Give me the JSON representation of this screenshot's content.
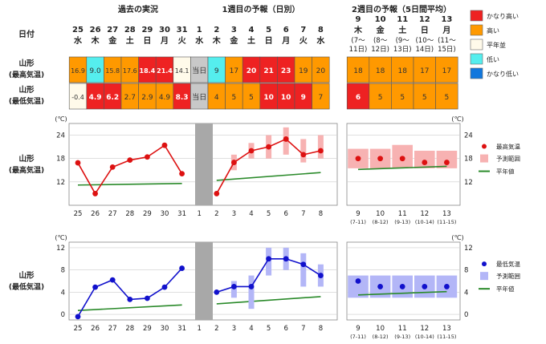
{
  "headers": {
    "past": "過去の実況",
    "week1": "1週目の予報（日別）",
    "week2": "2週目の予報（5日間平均）",
    "date_label": "日付"
  },
  "days": [
    {
      "d": "25",
      "w": "水"
    },
    {
      "d": "26",
      "w": "木"
    },
    {
      "d": "27",
      "w": "金"
    },
    {
      "d": "28",
      "w": "土"
    },
    {
      "d": "29",
      "w": "日"
    },
    {
      "d": "30",
      "w": "月"
    },
    {
      "d": "31",
      "w": "火"
    },
    {
      "d": "1",
      "w": "水"
    },
    {
      "d": "2",
      "w": "木"
    },
    {
      "d": "3",
      "w": "金"
    },
    {
      "d": "4",
      "w": "土"
    },
    {
      "d": "5",
      "w": "日"
    },
    {
      "d": "6",
      "w": "月"
    },
    {
      "d": "7",
      "w": "火"
    },
    {
      "d": "8",
      "w": "水"
    }
  ],
  "week2_days": [
    {
      "d": "9",
      "w": "木",
      "r": [
        "(7～",
        "11日)"
      ]
    },
    {
      "d": "10",
      "w": "金",
      "r": [
        "(8～",
        "12日)"
      ]
    },
    {
      "d": "11",
      "w": "土",
      "r": [
        "(9～",
        "13日)"
      ]
    },
    {
      "d": "12",
      "w": "日",
      "r": [
        "(10～",
        "14日)"
      ]
    },
    {
      "d": "13",
      "w": "月",
      "r": [
        "(11～",
        "15日)"
      ]
    }
  ],
  "rows": [
    {
      "name": [
        "山形",
        "(最高気温)"
      ],
      "cells": [
        {
          "v": "16.9",
          "c": "high"
        },
        {
          "v": "9.0",
          "c": "low"
        },
        {
          "v": "15.8",
          "c": "high"
        },
        {
          "v": "17.6",
          "c": "high"
        },
        {
          "v": "18.4",
          "c": "vhigh"
        },
        {
          "v": "21.4",
          "c": "vhigh"
        },
        {
          "v": "14.1",
          "c": "normal"
        },
        {
          "v": "当日",
          "c": "today"
        },
        {
          "v": "9",
          "c": "low"
        },
        {
          "v": "17",
          "c": "high"
        },
        {
          "v": "20",
          "c": "vhigh"
        },
        {
          "v": "21",
          "c": "vhigh"
        },
        {
          "v": "23",
          "c": "vhigh"
        },
        {
          "v": "19",
          "c": "high"
        },
        {
          "v": "20",
          "c": "high"
        }
      ],
      "w2": [
        {
          "v": "18",
          "c": "high"
        },
        {
          "v": "18",
          "c": "high"
        },
        {
          "v": "18",
          "c": "high"
        },
        {
          "v": "17",
          "c": "high"
        },
        {
          "v": "17",
          "c": "high"
        }
      ]
    },
    {
      "name": [
        "山形",
        "(最低気温)"
      ],
      "cells": [
        {
          "v": "-0.4",
          "c": "normal"
        },
        {
          "v": "4.9",
          "c": "vhigh"
        },
        {
          "v": "6.2",
          "c": "vhigh"
        },
        {
          "v": "2.7",
          "c": "high"
        },
        {
          "v": "2.9",
          "c": "high"
        },
        {
          "v": "4.9",
          "c": "high"
        },
        {
          "v": "8.3",
          "c": "vhigh"
        },
        {
          "v": "当日",
          "c": "today"
        },
        {
          "v": "4",
          "c": "high"
        },
        {
          "v": "5",
          "c": "high"
        },
        {
          "v": "5",
          "c": "high"
        },
        {
          "v": "10",
          "c": "vhigh"
        },
        {
          "v": "10",
          "c": "vhigh"
        },
        {
          "v": "9",
          "c": "vhigh"
        },
        {
          "v": "7",
          "c": "high"
        }
      ],
      "w2": [
        {
          "v": "6",
          "c": "vhigh"
        },
        {
          "v": "5",
          "c": "high"
        },
        {
          "v": "5",
          "c": "high"
        },
        {
          "v": "5",
          "c": "high"
        },
        {
          "v": "5",
          "c": "high"
        }
      ]
    }
  ],
  "legend": [
    {
      "label": "かなり高い",
      "color": "#ee2222"
    },
    {
      "label": "高い",
      "color": "#ff9900"
    },
    {
      "label": "平年並",
      "color": "#fffaea"
    },
    {
      "label": "低い",
      "color": "#55eeee"
    },
    {
      "label": "かなり低い",
      "color": "#1177dd"
    }
  ],
  "colors": {
    "vhigh": "#ee2222",
    "high": "#ff9900",
    "normal": "#fffaea",
    "low": "#55eeee",
    "vlow": "#1177dd",
    "today": "#c8c8c8",
    "max_line": "#dd1111",
    "max_range": "#f7b2b2",
    "min_line": "#1111cc",
    "min_range": "#b3b6f7",
    "normal_line": "#2a8a2a"
  },
  "chart_data": [
    {
      "type": "line",
      "title": "山形 (最高気温)",
      "row_label": [
        "山形",
        "(最高気温)"
      ],
      "unit": "(℃)",
      "ylim": [
        6,
        27
      ],
      "yticks": [
        12,
        18,
        24
      ],
      "categories": [
        "25",
        "26",
        "27",
        "28",
        "29",
        "30",
        "31",
        "1",
        "2",
        "3",
        "4",
        "5",
        "6",
        "7",
        "8"
      ],
      "past_values": [
        16.9,
        9.0,
        15.8,
        17.6,
        18.4,
        21.4,
        14.1
      ],
      "forecast_values": [
        9,
        17,
        20,
        21,
        23,
        19,
        20
      ],
      "forecast_range": [
        null,
        [
          15,
          19
        ],
        [
          18,
          22
        ],
        [
          18,
          24
        ],
        [
          19,
          26
        ],
        [
          17,
          23
        ],
        [
          18,
          24
        ]
      ],
      "normal_past": [
        11.2,
        11.6
      ],
      "normal_forecast": [
        12.4,
        14.4
      ],
      "week2": {
        "categories": [
          "9",
          "10",
          "11",
          "12",
          "13"
        ],
        "sub_labels": [
          "(7-11)",
          "(8-12)",
          "(9-13)",
          "(10-14)",
          "(11-15)"
        ],
        "values": [
          18,
          18,
          18,
          17,
          17
        ],
        "range": [
          [
            15.5,
            20.5
          ],
          [
            15.5,
            20.5
          ],
          [
            15.5,
            21.5
          ],
          [
            15.5,
            20
          ],
          [
            15.5,
            20
          ]
        ],
        "normal": [
          15.2,
          16.0
        ]
      },
      "legend": [
        "最高気温",
        "予測範囲",
        "平年値"
      ]
    },
    {
      "type": "line",
      "title": "山形 (最低気温)",
      "row_label": [
        "山形",
        "(最低気温)"
      ],
      "unit": "(℃)",
      "ylim": [
        -1,
        13
      ],
      "yticks": [
        0,
        4,
        8,
        12
      ],
      "categories": [
        "25",
        "26",
        "27",
        "28",
        "29",
        "30",
        "31",
        "1",
        "2",
        "3",
        "4",
        "5",
        "6",
        "7",
        "8"
      ],
      "past_values": [
        -0.4,
        4.9,
        6.2,
        2.7,
        2.9,
        4.9,
        8.3
      ],
      "forecast_values": [
        4,
        5,
        5,
        10,
        10,
        9,
        7
      ],
      "forecast_range": [
        null,
        [
          3,
          6
        ],
        [
          1,
          7
        ],
        [
          7,
          12
        ],
        [
          8,
          12
        ],
        [
          5,
          11
        ],
        [
          5,
          9
        ]
      ],
      "normal_past": [
        0.7,
        1.7
      ],
      "normal_forecast": [
        1.9,
        3.2
      ],
      "week2": {
        "categories": [
          "9",
          "10",
          "11",
          "12",
          "13"
        ],
        "sub_labels": [
          "(7-11)",
          "(8-12)",
          "(9-13)",
          "(10-14)",
          "(11-15)"
        ],
        "values": [
          6,
          5,
          5,
          5,
          5
        ],
        "range": [
          [
            3,
            7
          ],
          [
            3,
            7
          ],
          [
            3,
            7
          ],
          [
            3,
            7
          ],
          [
            3,
            7
          ]
        ],
        "normal": [
          3.5,
          4.1
        ]
      },
      "legend": [
        "最低気温",
        "予測範囲",
        "平年値"
      ]
    }
  ]
}
